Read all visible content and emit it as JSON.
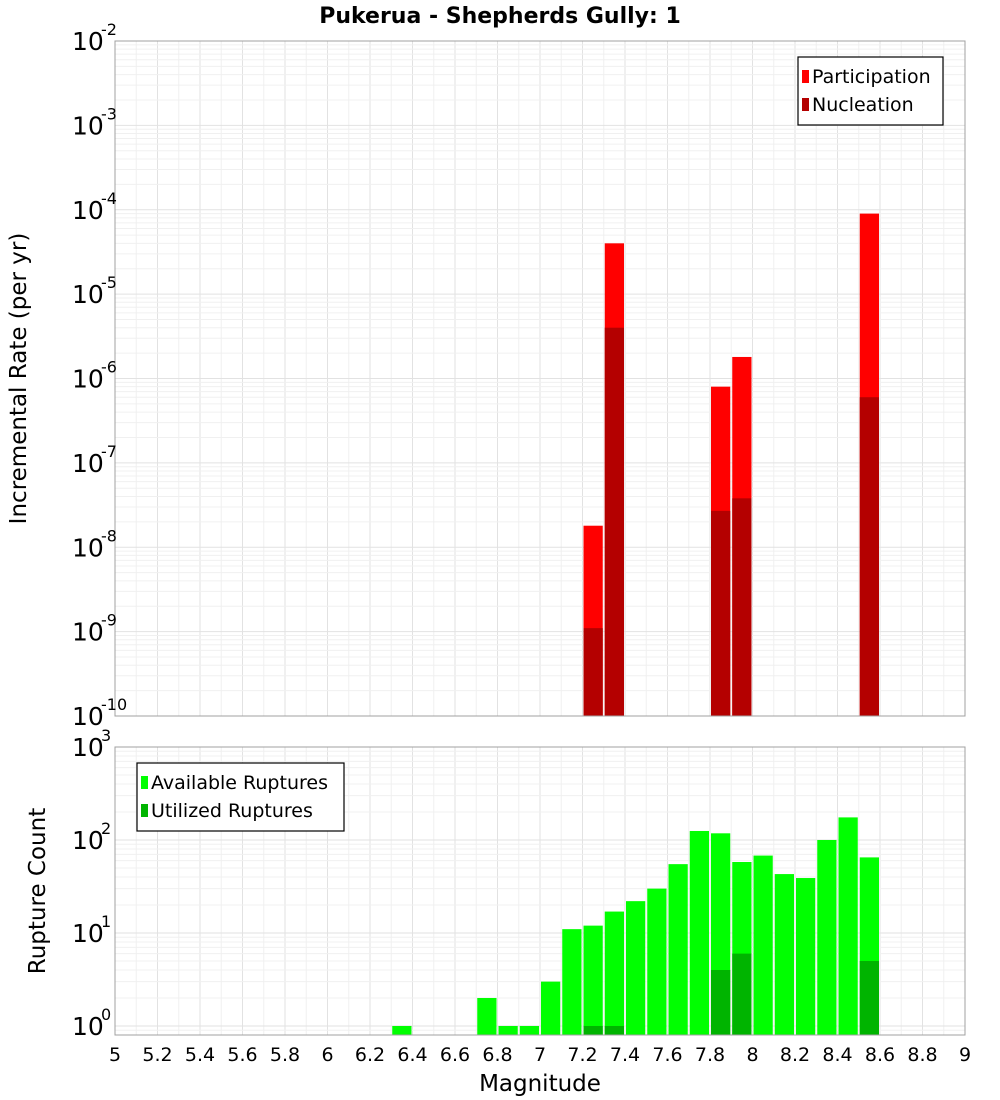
{
  "chart_data": [
    {
      "type": "bar",
      "title": "Pukerua - Shepherds Gully: 1",
      "xlabel": "",
      "ylabel": "Incremental Rate (per yr)",
      "yscale": "log",
      "ylim": [
        1e-10,
        0.01
      ],
      "xlim": [
        5,
        9
      ],
      "grid": true,
      "legend_position": "top-right",
      "ytick_base": "10",
      "yticks": [
        {
          "exp": -10,
          "label": "-10"
        },
        {
          "exp": -9,
          "label": "-9"
        },
        {
          "exp": -8,
          "label": "-8"
        },
        {
          "exp": -7,
          "label": "-7"
        },
        {
          "exp": -6,
          "label": "-6"
        },
        {
          "exp": -5,
          "label": "-5"
        },
        {
          "exp": -4,
          "label": "-4"
        },
        {
          "exp": -3,
          "label": "-3"
        },
        {
          "exp": -2,
          "label": "-2"
        }
      ],
      "bar_width": 0.1,
      "series": [
        {
          "name": "Participation",
          "color": "#ff0000",
          "points": [
            {
              "x": 7.25,
              "y": 1.8e-08
            },
            {
              "x": 7.35,
              "y": 4e-05
            },
            {
              "x": 7.85,
              "y": 8e-07
            },
            {
              "x": 7.95,
              "y": 1.8e-06
            },
            {
              "x": 8.55,
              "y": 9e-05
            }
          ]
        },
        {
          "name": "Nucleation",
          "color": "#b40000",
          "points": [
            {
              "x": 7.25,
              "y": 1.1e-09
            },
            {
              "x": 7.35,
              "y": 4e-06
            },
            {
              "x": 7.85,
              "y": 2.7e-08
            },
            {
              "x": 7.95,
              "y": 3.8e-08
            },
            {
              "x": 8.55,
              "y": 6e-07
            }
          ]
        }
      ]
    },
    {
      "type": "bar",
      "title": "",
      "xlabel": "Magnitude",
      "ylabel": "Rupture Count",
      "yscale": "log",
      "ylim": [
        0.8,
        1000
      ],
      "xlim": [
        5,
        9
      ],
      "grid": true,
      "legend_position": "top-left",
      "ytick_base": "10",
      "yticks": [
        {
          "exp": 0,
          "label": "0"
        },
        {
          "exp": 1,
          "label": "1"
        },
        {
          "exp": 2,
          "label": "2"
        },
        {
          "exp": 3,
          "label": "3"
        }
      ],
      "xticks": [
        "5",
        "5.2",
        "5.4",
        "5.6",
        "5.8",
        "6",
        "6.2",
        "6.4",
        "6.6",
        "6.8",
        "7",
        "7.2",
        "7.4",
        "7.6",
        "7.8",
        "8",
        "8.2",
        "8.4",
        "8.6",
        "8.8",
        "9"
      ],
      "bar_width": 0.1,
      "series": [
        {
          "name": "Available Ruptures",
          "color": "#00ff00",
          "points": [
            {
              "x": 6.35,
              "y": 1
            },
            {
              "x": 6.75,
              "y": 2
            },
            {
              "x": 6.85,
              "y": 1
            },
            {
              "x": 6.95,
              "y": 1
            },
            {
              "x": 7.05,
              "y": 3
            },
            {
              "x": 7.15,
              "y": 11
            },
            {
              "x": 7.25,
              "y": 12
            },
            {
              "x": 7.35,
              "y": 17
            },
            {
              "x": 7.45,
              "y": 22
            },
            {
              "x": 7.55,
              "y": 30
            },
            {
              "x": 7.65,
              "y": 55
            },
            {
              "x": 7.75,
              "y": 125
            },
            {
              "x": 7.85,
              "y": 118
            },
            {
              "x": 7.95,
              "y": 58
            },
            {
              "x": 8.05,
              "y": 68
            },
            {
              "x": 8.15,
              "y": 43
            },
            {
              "x": 8.25,
              "y": 39
            },
            {
              "x": 8.35,
              "y": 100
            },
            {
              "x": 8.45,
              "y": 175
            },
            {
              "x": 8.55,
              "y": 65
            }
          ]
        },
        {
          "name": "Utilized Ruptures",
          "color": "#00b400",
          "points": [
            {
              "x": 7.25,
              "y": 1
            },
            {
              "x": 7.35,
              "y": 1
            },
            {
              "x": 7.85,
              "y": 4
            },
            {
              "x": 7.95,
              "y": 6
            },
            {
              "x": 8.55,
              "y": 5
            }
          ]
        }
      ]
    }
  ]
}
